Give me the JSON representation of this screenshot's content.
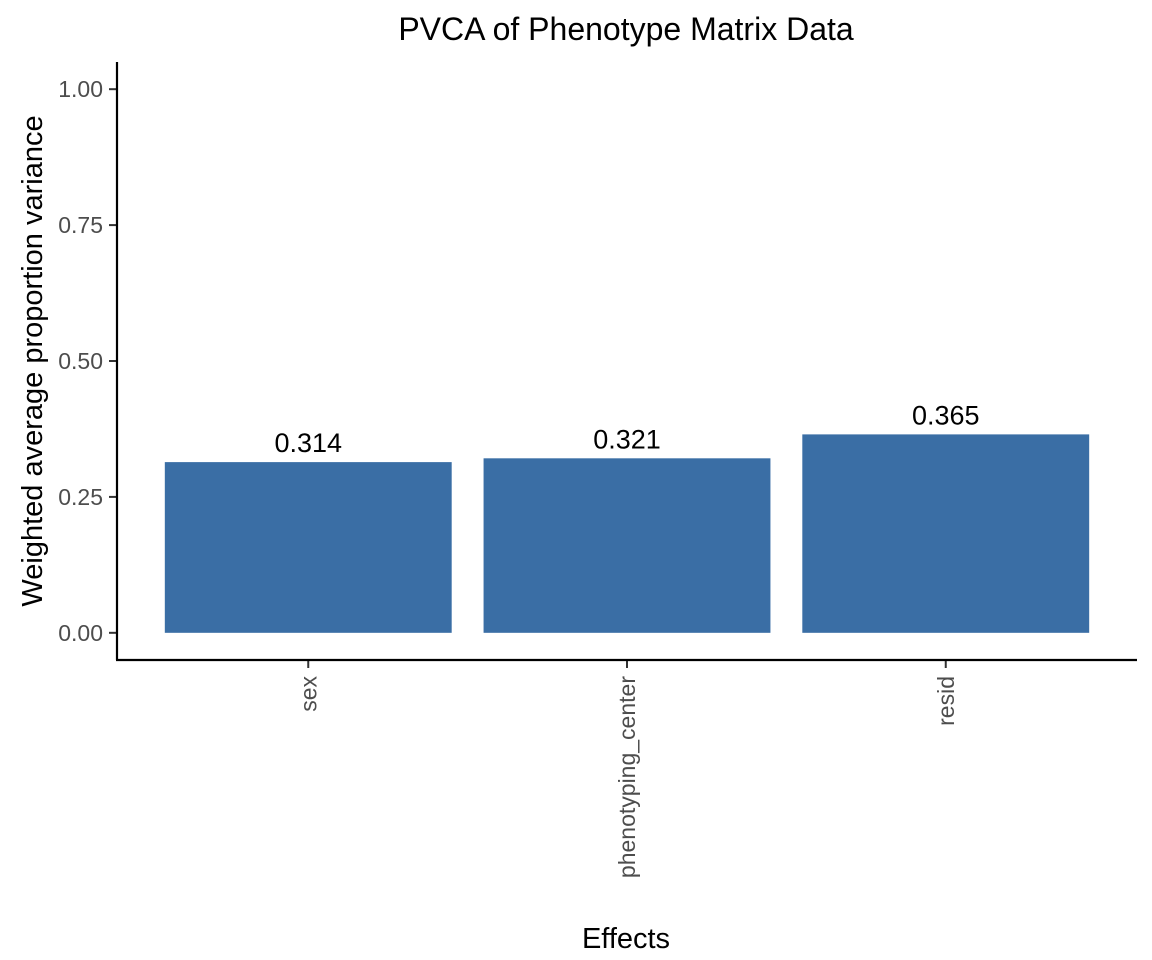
{
  "chart_data": {
    "type": "bar",
    "title": "PVCA of Phenotype Matrix Data",
    "xlabel": "Effects",
    "ylabel": "Weighted average proportion variance",
    "categories": [
      "sex",
      "phenotyping_center",
      "resid"
    ],
    "values": [
      0.314,
      0.321,
      0.365
    ],
    "data_labels": [
      "0.314",
      "0.321",
      "0.365"
    ],
    "ylim": [
      -0.05,
      1.05
    ],
    "yticks": [
      0,
      0.25,
      0.5,
      0.75,
      1.0
    ],
    "ytick_labels": [
      "0.00",
      "0.25",
      "0.50",
      "0.75",
      "1.00"
    ],
    "grid": false,
    "legend": "none",
    "bar_color": "#3A6EA5"
  }
}
